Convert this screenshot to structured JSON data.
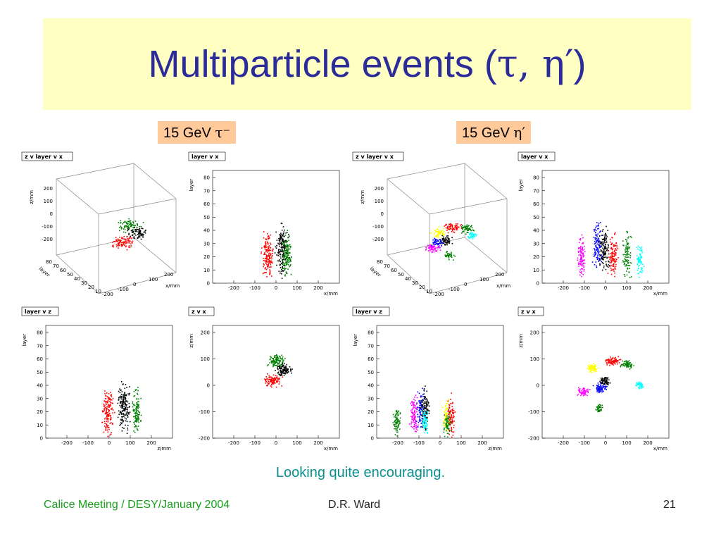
{
  "slide": {
    "title_main": "Multiparticle events (",
    "title_greek": "τ, η′",
    "title_close": ")",
    "caption": "Looking quite encouraging.",
    "footer_left": "Calice Meeting / DESY/January 2004",
    "footer_center": "D.R. Ward",
    "footer_right": "21"
  },
  "labels": [
    {
      "text": "15 GeV ",
      "greek": "τ⁻"
    },
    {
      "text": "15 GeV ",
      "greek": "η′"
    }
  ],
  "colors": {
    "title": "#2b2b9a",
    "title_bg": "#ffffc4",
    "label_bg": "#ffc99a",
    "caption": "#0b8f8f",
    "footer_left": "#17a01b"
  },
  "plots": {
    "tau": {
      "zvlayervx": {
        "title": "z v layer v x",
        "zticks": [
          "200",
          "100",
          "0",
          "-100",
          "-200"
        ],
        "zlabel": "z/mm",
        "layer_ticks": [
          "80",
          "70",
          "60",
          "50",
          "40",
          "30",
          "20",
          "10"
        ],
        "layer_label": "layer",
        "x_ticks": [
          "-200",
          "-100",
          "0",
          "100",
          "200"
        ],
        "x_label": "x/mm"
      },
      "layervx": {
        "title": "layer v x",
        "yticks": [
          "80",
          "70",
          "60",
          "50",
          "40",
          "30",
          "20",
          "10",
          "0"
        ],
        "ylabel": "layer",
        "xticks": [
          "-200",
          "-100",
          "0",
          "100",
          "200"
        ],
        "xlabel": "x/mm"
      },
      "layervz": {
        "title": "layer v z",
        "yticks": [
          "80",
          "70",
          "60",
          "50",
          "40",
          "30",
          "20",
          "10",
          "0"
        ],
        "ylabel": "layer",
        "xticks": [
          "-200",
          "-100",
          "0",
          "100",
          "200"
        ],
        "xlabel": "z/mm"
      },
      "zvx": {
        "title": "z v x",
        "yticks": [
          "200",
          "100",
          "0",
          "-100",
          "-200"
        ],
        "ylabel": "z/mm",
        "xticks": [
          "-200",
          "-100",
          "0",
          "100",
          "200"
        ],
        "xlabel": "x/mm"
      }
    },
    "eta": {
      "zvlayervx": {
        "title": "z v layer v x",
        "zticks": [
          "200",
          "100",
          "0",
          "-100",
          "-200"
        ],
        "zlabel": "z/mm",
        "layer_ticks": [
          "80",
          "70",
          "60",
          "50",
          "40",
          "30",
          "20",
          "10"
        ],
        "layer_label": "layer",
        "x_ticks": [
          "-200",
          "-100",
          "0",
          "100",
          "200"
        ],
        "x_label": "x/mm"
      },
      "layervx": {
        "title": "layer v x",
        "yticks": [
          "80",
          "70",
          "60",
          "50",
          "40",
          "30",
          "20",
          "10",
          "0"
        ],
        "ylabel": "layer",
        "xticks": [
          "-200",
          "-100",
          "0",
          "100",
          "200"
        ],
        "xlabel": "x/mm"
      },
      "layervz": {
        "title": "layer v z",
        "yticks": [
          "80",
          "70",
          "60",
          "50",
          "40",
          "30",
          "20",
          "10",
          "0"
        ],
        "ylabel": "layer",
        "xticks": [
          "-200",
          "-100",
          "0",
          "100",
          "200"
        ],
        "xlabel": "z/mm"
      },
      "zvx": {
        "title": "z v x",
        "yticks": [
          "200",
          "100",
          "0",
          "-100",
          "-200"
        ],
        "ylabel": "z/mm",
        "xticks": [
          "-200",
          "-100",
          "0",
          "100",
          "200"
        ],
        "xlabel": "x/mm"
      }
    }
  },
  "cluster_colors": [
    "red",
    "black",
    "green",
    "blue",
    "yellow",
    "magenta",
    "cyan"
  ]
}
